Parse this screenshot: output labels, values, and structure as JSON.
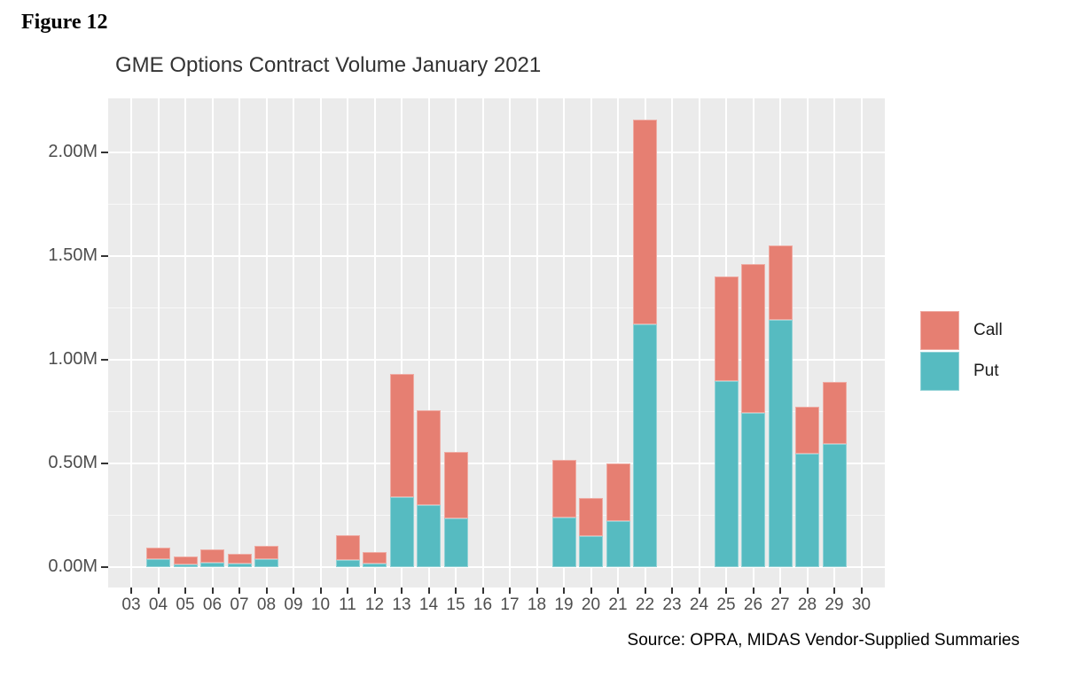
{
  "figure": {
    "label": "Figure 12"
  },
  "chart": {
    "title": "GME Options Contract Volume January 2021",
    "source": "Source: OPRA, MIDAS Vendor-Supplied Summaries"
  },
  "legend": {
    "position": "right",
    "items": [
      {
        "label": "Call",
        "color": "#E67F72"
      },
      {
        "label": "Put",
        "color": "#56BBC1"
      }
    ]
  },
  "colors": {
    "panel_background": "#EBEBEB",
    "gridline": "#FFFFFF",
    "axis_text": "#4D4D4D",
    "tick_mark": "#333333",
    "call": "#E67F72",
    "put": "#56BBC1"
  },
  "chart_data": {
    "type": "bar",
    "stacked": true,
    "title": "GME Options Contract Volume January 2021",
    "xlabel": "",
    "ylabel": "",
    "unit": "millions of contracts",
    "categories": [
      "03",
      "04",
      "05",
      "06",
      "07",
      "08",
      "09",
      "10",
      "11",
      "12",
      "13",
      "14",
      "15",
      "16",
      "17",
      "18",
      "19",
      "20",
      "21",
      "22",
      "23",
      "24",
      "25",
      "26",
      "27",
      "28",
      "29",
      "30"
    ],
    "series": [
      {
        "name": "Put",
        "color": "#56BBC1",
        "values": [
          0,
          0.04,
          0.012,
          0.021,
          0.015,
          0.038,
          0,
          0,
          0.035,
          0.017,
          0.339,
          0.299,
          0.236,
          0,
          0,
          0,
          0.239,
          0.15,
          0.222,
          1.171,
          0,
          0,
          0.897,
          0.745,
          1.192,
          0.548,
          0.592,
          0
        ]
      },
      {
        "name": "Call",
        "color": "#E67F72",
        "values": [
          0,
          0.057,
          0.039,
          0.062,
          0.049,
          0.063,
          0,
          0,
          0.121,
          0.056,
          0.594,
          0.456,
          0.322,
          0,
          0,
          0,
          0.278,
          0.182,
          0.276,
          0.987,
          0,
          0,
          0.505,
          0.72,
          0.358,
          0.228,
          0.299,
          0
        ]
      }
    ],
    "y_ticks": [
      {
        "value": 0.0,
        "label": "0.00M"
      },
      {
        "value": 0.5,
        "label": "0.50M"
      },
      {
        "value": 1.0,
        "label": "1.00M"
      },
      {
        "value": 1.5,
        "label": "1.50M"
      },
      {
        "value": 2.0,
        "label": "2.00M"
      }
    ],
    "y_minor_ticks": [
      0.25,
      0.75,
      1.25,
      1.75
    ],
    "ylim": [
      0,
      2.23
    ],
    "grid": true,
    "legend_position": "right"
  }
}
